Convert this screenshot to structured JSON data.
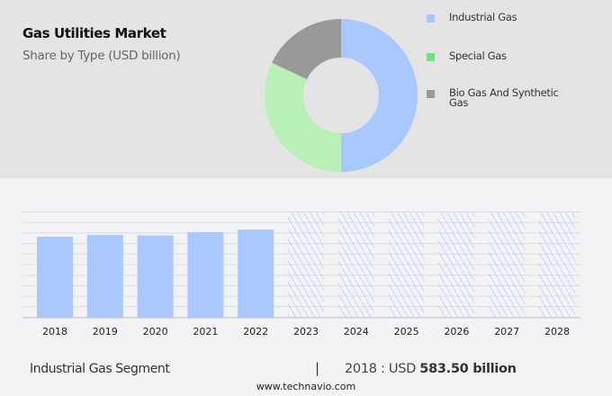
{
  "header": {
    "title": "Gas Utilities Market",
    "subtitle": "Share by Type (USD billion)"
  },
  "chart_data": [
    {
      "type": "pie",
      "donut": true,
      "labels": [
        "Industrial Gas",
        "Special Gas",
        "Bio Gas And Synthetic Gas"
      ],
      "values": [
        50,
        32,
        18
      ],
      "colors": [
        "#a8c8ff",
        "#b8f0b8",
        "#999999"
      ],
      "legend_colors": [
        "#a8c8ff",
        "#77dd88",
        "#999999"
      ],
      "legend_placement": "right"
    },
    {
      "type": "bar",
      "categories": [
        "2018",
        "2019",
        "2020",
        "2021",
        "2022",
        "2023",
        "2024",
        "2025",
        "2026",
        "2027",
        "2028"
      ],
      "values": [
        583.5,
        596,
        593,
        616,
        635,
        null,
        null,
        null,
        null,
        null,
        null
      ],
      "forecast_categories": [
        "2023",
        "2024",
        "2025",
        "2026",
        "2027",
        "2028"
      ],
      "forecast_style": "hatched",
      "bar_color": "#a8c8ff",
      "grid": true,
      "xlabel": "",
      "ylabel": ""
    }
  ],
  "footer": {
    "segment": "Industrial Gas Segment",
    "separator": "|",
    "year_label": "2018 : USD ",
    "value": "583.50 billion",
    "site": "www.technavio.com"
  }
}
